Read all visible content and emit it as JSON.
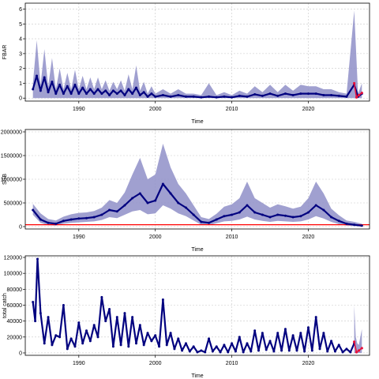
{
  "chart_data": [
    {
      "type": "line",
      "id": "fbar",
      "ylabel": "FBAR",
      "xlabel": "Time",
      "xlim": [
        1983,
        2028
      ],
      "ylim": [
        -0.2,
        6.4
      ],
      "xticks": [
        1990,
        2000,
        2010,
        2020
      ],
      "yticks": [
        0,
        1,
        2,
        3,
        4,
        5,
        6
      ],
      "ytick_labels": [
        "0",
        "1",
        "2",
        "3",
        "4",
        "5",
        "6"
      ],
      "grid": true,
      "series": [
        {
          "role": "median",
          "x": [
            1984,
            1984.5,
            1985,
            1985.5,
            1986,
            1986.5,
            1987,
            1987.5,
            1988,
            1988.5,
            1989,
            1989.5,
            1990,
            1990.5,
            1991,
            1991.5,
            1992,
            1992.5,
            1993,
            1993.5,
            1994,
            1994.5,
            1995,
            1995.5,
            1996,
            1996.5,
            1997,
            1997.5,
            1998,
            1998.5,
            1999,
            1999.5,
            2000,
            2001,
            2002,
            2003,
            2004,
            2005,
            2006,
            2007,
            2008,
            2009,
            2010,
            2011,
            2012,
            2013,
            2014,
            2015,
            2016,
            2017,
            2018,
            2019,
            2020,
            2021,
            2022,
            2023,
            2024,
            2025,
            2026,
            2026.5,
            2027
          ],
          "y": [
            0.6,
            1.5,
            0.5,
            1.4,
            0.4,
            1.1,
            0.3,
            0.9,
            0.3,
            0.8,
            0.3,
            0.9,
            0.3,
            0.7,
            0.3,
            0.6,
            0.3,
            0.6,
            0.3,
            0.5,
            0.2,
            0.5,
            0.3,
            0.5,
            0.2,
            0.6,
            0.3,
            0.7,
            0.2,
            0.4,
            0.1,
            0.3,
            0.1,
            0.2,
            0.1,
            0.2,
            0.1,
            0.1,
            0.05,
            0.1,
            0.05,
            0.1,
            0.05,
            0.15,
            0.1,
            0.25,
            0.15,
            0.3,
            0.15,
            0.3,
            0.2,
            0.3,
            0.3,
            0.3,
            0.2,
            0.2,
            0.15,
            0.1,
            0.9,
            0.1,
            0.3
          ]
        },
        {
          "role": "upper",
          "x": [
            1984,
            1984.5,
            1985,
            1985.5,
            1986,
            1986.5,
            1987,
            1987.5,
            1988,
            1988.5,
            1989,
            1989.5,
            1990,
            1990.5,
            1991,
            1991.5,
            1992,
            1992.5,
            1993,
            1993.5,
            1994,
            1994.5,
            1995,
            1995.5,
            1996,
            1996.5,
            1997,
            1997.5,
            1998,
            1998.5,
            1999,
            1999.5,
            2000,
            2001,
            2002,
            2003,
            2004,
            2005,
            2006,
            2007,
            2008,
            2009,
            2010,
            2011,
            2012,
            2013,
            2014,
            2015,
            2016,
            2017,
            2018,
            2019,
            2020,
            2021,
            2022,
            2023,
            2024,
            2025,
            2026,
            2026.5,
            2027
          ],
          "y": [
            1.0,
            3.9,
            0.9,
            3.3,
            0.8,
            2.7,
            0.6,
            2.0,
            0.6,
            1.7,
            0.6,
            1.9,
            0.6,
            1.5,
            0.6,
            1.4,
            0.6,
            1.4,
            0.6,
            1.2,
            0.5,
            1.1,
            0.6,
            1.2,
            0.5,
            1.6,
            0.6,
            2.2,
            0.5,
            1.1,
            0.3,
            0.8,
            0.3,
            0.6,
            0.3,
            0.6,
            0.3,
            0.3,
            0.2,
            1.0,
            0.2,
            0.4,
            0.2,
            0.5,
            0.3,
            0.8,
            0.4,
            0.9,
            0.4,
            0.9,
            0.5,
            0.9,
            0.8,
            0.8,
            0.6,
            0.6,
            0.4,
            0.3,
            5.9,
            0.3,
            1.0
          ]
        },
        {
          "role": "lower",
          "x": [
            1984,
            2027
          ],
          "y": [
            0.0,
            0.0
          ]
        },
        {
          "role": "forecast",
          "x": [
            2026,
            2026.3,
            2026.6,
            2027
          ],
          "y": [
            1.0,
            0.05,
            0.2,
            0.35
          ]
        }
      ]
    },
    {
      "type": "line",
      "id": "ssb",
      "ylabel": "SSB",
      "xlabel": "Time",
      "xlim": [
        1983,
        2028
      ],
      "ylim": [
        -50000,
        2050000
      ],
      "xticks": [
        1990,
        2000,
        2010,
        2020
      ],
      "yticks": [
        0,
        500000,
        1000000,
        1500000,
        2000000
      ],
      "ytick_labels": [
        "0",
        "500000",
        "1000000",
        "1500000",
        "2000000"
      ],
      "grid": true,
      "reference_line": 40000,
      "series": [
        {
          "role": "median",
          "x": [
            1984,
            1985,
            1986,
            1987,
            1988,
            1989,
            1990,
            1991,
            1992,
            1993,
            1994,
            1995,
            1996,
            1997,
            1998,
            1999,
            2000,
            2001,
            2002,
            2003,
            2004,
            2005,
            2006,
            2007,
            2008,
            2009,
            2010,
            2011,
            2012,
            2013,
            2014,
            2015,
            2016,
            2017,
            2018,
            2019,
            2020,
            2021,
            2022,
            2023,
            2024,
            2025,
            2026,
            2027
          ],
          "y": [
            350000,
            150000,
            80000,
            60000,
            120000,
            150000,
            170000,
            180000,
            200000,
            250000,
            350000,
            320000,
            450000,
            600000,
            700000,
            500000,
            550000,
            900000,
            700000,
            500000,
            400000,
            250000,
            100000,
            80000,
            150000,
            220000,
            250000,
            300000,
            450000,
            300000,
            250000,
            200000,
            250000,
            230000,
            200000,
            220000,
            300000,
            450000,
            350000,
            200000,
            120000,
            60000,
            40000,
            20000
          ]
        },
        {
          "role": "upper",
          "x": [
            1984,
            1985,
            1986,
            1987,
            1988,
            1989,
            1990,
            1991,
            1992,
            1993,
            1994,
            1995,
            1996,
            1997,
            1998,
            1999,
            2000,
            2001,
            2002,
            2003,
            2004,
            2005,
            2006,
            2007,
            2008,
            2009,
            2010,
            2011,
            2012,
            2013,
            2014,
            2015,
            2016,
            2017,
            2018,
            2019,
            2020,
            2021,
            2022,
            2023,
            2024,
            2025,
            2026,
            2027
          ],
          "y": [
            480000,
            280000,
            160000,
            130000,
            210000,
            260000,
            290000,
            300000,
            330000,
            400000,
            560000,
            500000,
            720000,
            1100000,
            1450000,
            1000000,
            1100000,
            1750000,
            1250000,
            900000,
            700000,
            450000,
            200000,
            160000,
            270000,
            420000,
            470000,
            600000,
            950000,
            600000,
            500000,
            400000,
            470000,
            430000,
            380000,
            420000,
            600000,
            950000,
            700000,
            380000,
            240000,
            130000,
            100000,
            60000
          ]
        },
        {
          "role": "lower",
          "x": [
            1984,
            1985,
            1986,
            1987,
            1988,
            1989,
            1990,
            1991,
            1992,
            1993,
            1994,
            1995,
            1996,
            1997,
            1998,
            1999,
            2000,
            2001,
            2002,
            2003,
            2004,
            2005,
            2006,
            2007,
            2008,
            2009,
            2010,
            2011,
            2012,
            2013,
            2014,
            2015,
            2016,
            2017,
            2018,
            2019,
            2020,
            2021,
            2022,
            2023,
            2024,
            2025,
            2026,
            2027
          ],
          "y": [
            250000,
            80000,
            30000,
            20000,
            60000,
            80000,
            90000,
            100000,
            110000,
            140000,
            200000,
            180000,
            250000,
            320000,
            350000,
            260000,
            280000,
            450000,
            380000,
            280000,
            220000,
            130000,
            40000,
            30000,
            70000,
            110000,
            120000,
            150000,
            210000,
            150000,
            120000,
            100000,
            120000,
            110000,
            100000,
            110000,
            150000,
            220000,
            170000,
            100000,
            50000,
            20000,
            10000,
            5000
          ]
        }
      ]
    },
    {
      "type": "line",
      "id": "catch",
      "ylabel": "total catch",
      "xlabel": "Time",
      "xlim": [
        1983,
        2028
      ],
      "ylim": [
        -3000,
        122000
      ],
      "xticks": [
        1990,
        2000,
        2010,
        2020
      ],
      "yticks": [
        0,
        20000,
        40000,
        60000,
        80000,
        100000,
        120000
      ],
      "ytick_labels": [
        "0",
        "20000",
        "40000",
        "60000",
        "80000",
        "100000",
        "120000"
      ],
      "grid": true,
      "series": [
        {
          "role": "observed",
          "x": [
            1984,
            1984.3,
            1984.6,
            1985,
            1985.5,
            1986,
            1986.5,
            1987,
            1987.5,
            1988,
            1988.5,
            1989,
            1989.5,
            1990,
            1990.5,
            1991,
            1991.5,
            1992,
            1992.5,
            1993,
            1993.5,
            1994,
            1994.5,
            1995,
            1995.5,
            1996,
            1996.5,
            1997,
            1997.5,
            1998,
            1998.5,
            1999,
            1999.5,
            2000,
            2000.5,
            2001,
            2001.5,
            2002,
            2002.5,
            2003,
            2003.5,
            2004,
            2004.5,
            2005,
            2005.5,
            2006,
            2006.5,
            2007,
            2007.5,
            2008,
            2008.5,
            2009,
            2009.5,
            2010,
            2010.5,
            2011,
            2011.5,
            2012,
            2012.5,
            2013,
            2013.5,
            2014,
            2014.5,
            2015,
            2015.5,
            2016,
            2016.5,
            2017,
            2017.5,
            2018,
            2018.5,
            2019,
            2019.5,
            2020,
            2020.5,
            2021,
            2021.5,
            2022,
            2022.5,
            2023,
            2023.5,
            2024,
            2024.5,
            2025,
            2025.5,
            2026
          ],
          "y": [
            64000,
            40000,
            118000,
            50000,
            12000,
            45000,
            10000,
            22000,
            20000,
            60000,
            5000,
            18000,
            8000,
            38000,
            12000,
            28000,
            15000,
            35000,
            20000,
            70000,
            40000,
            55000,
            8000,
            45000,
            10000,
            50000,
            8000,
            45000,
            12000,
            35000,
            10000,
            25000,
            15000,
            22000,
            8000,
            67000,
            10000,
            25000,
            5000,
            18000,
            3000,
            12000,
            2000,
            8000,
            1000,
            3000,
            1000,
            18000,
            2000,
            8000,
            1000,
            10000,
            1000,
            12000,
            2000,
            20000,
            1000,
            12000,
            2000,
            28000,
            3000,
            25000,
            4000,
            15000,
            2000,
            25000,
            3000,
            30000,
            3000,
            22000,
            3000,
            25000,
            2000,
            32000,
            3000,
            45000,
            5000,
            25000,
            2000,
            15000,
            2000,
            10000,
            1000,
            5000,
            1000,
            12000
          ]
        },
        {
          "role": "upper",
          "x": [
            2026,
            2026.2,
            2026.4,
            2026.6,
            2027
          ],
          "y": [
            60000,
            20000,
            12000,
            10000,
            30000
          ]
        },
        {
          "role": "forecast",
          "x": [
            2026,
            2026.3,
            2026.6,
            2027
          ],
          "y": [
            14000,
            1000,
            3000,
            6000
          ]
        }
      ]
    }
  ]
}
